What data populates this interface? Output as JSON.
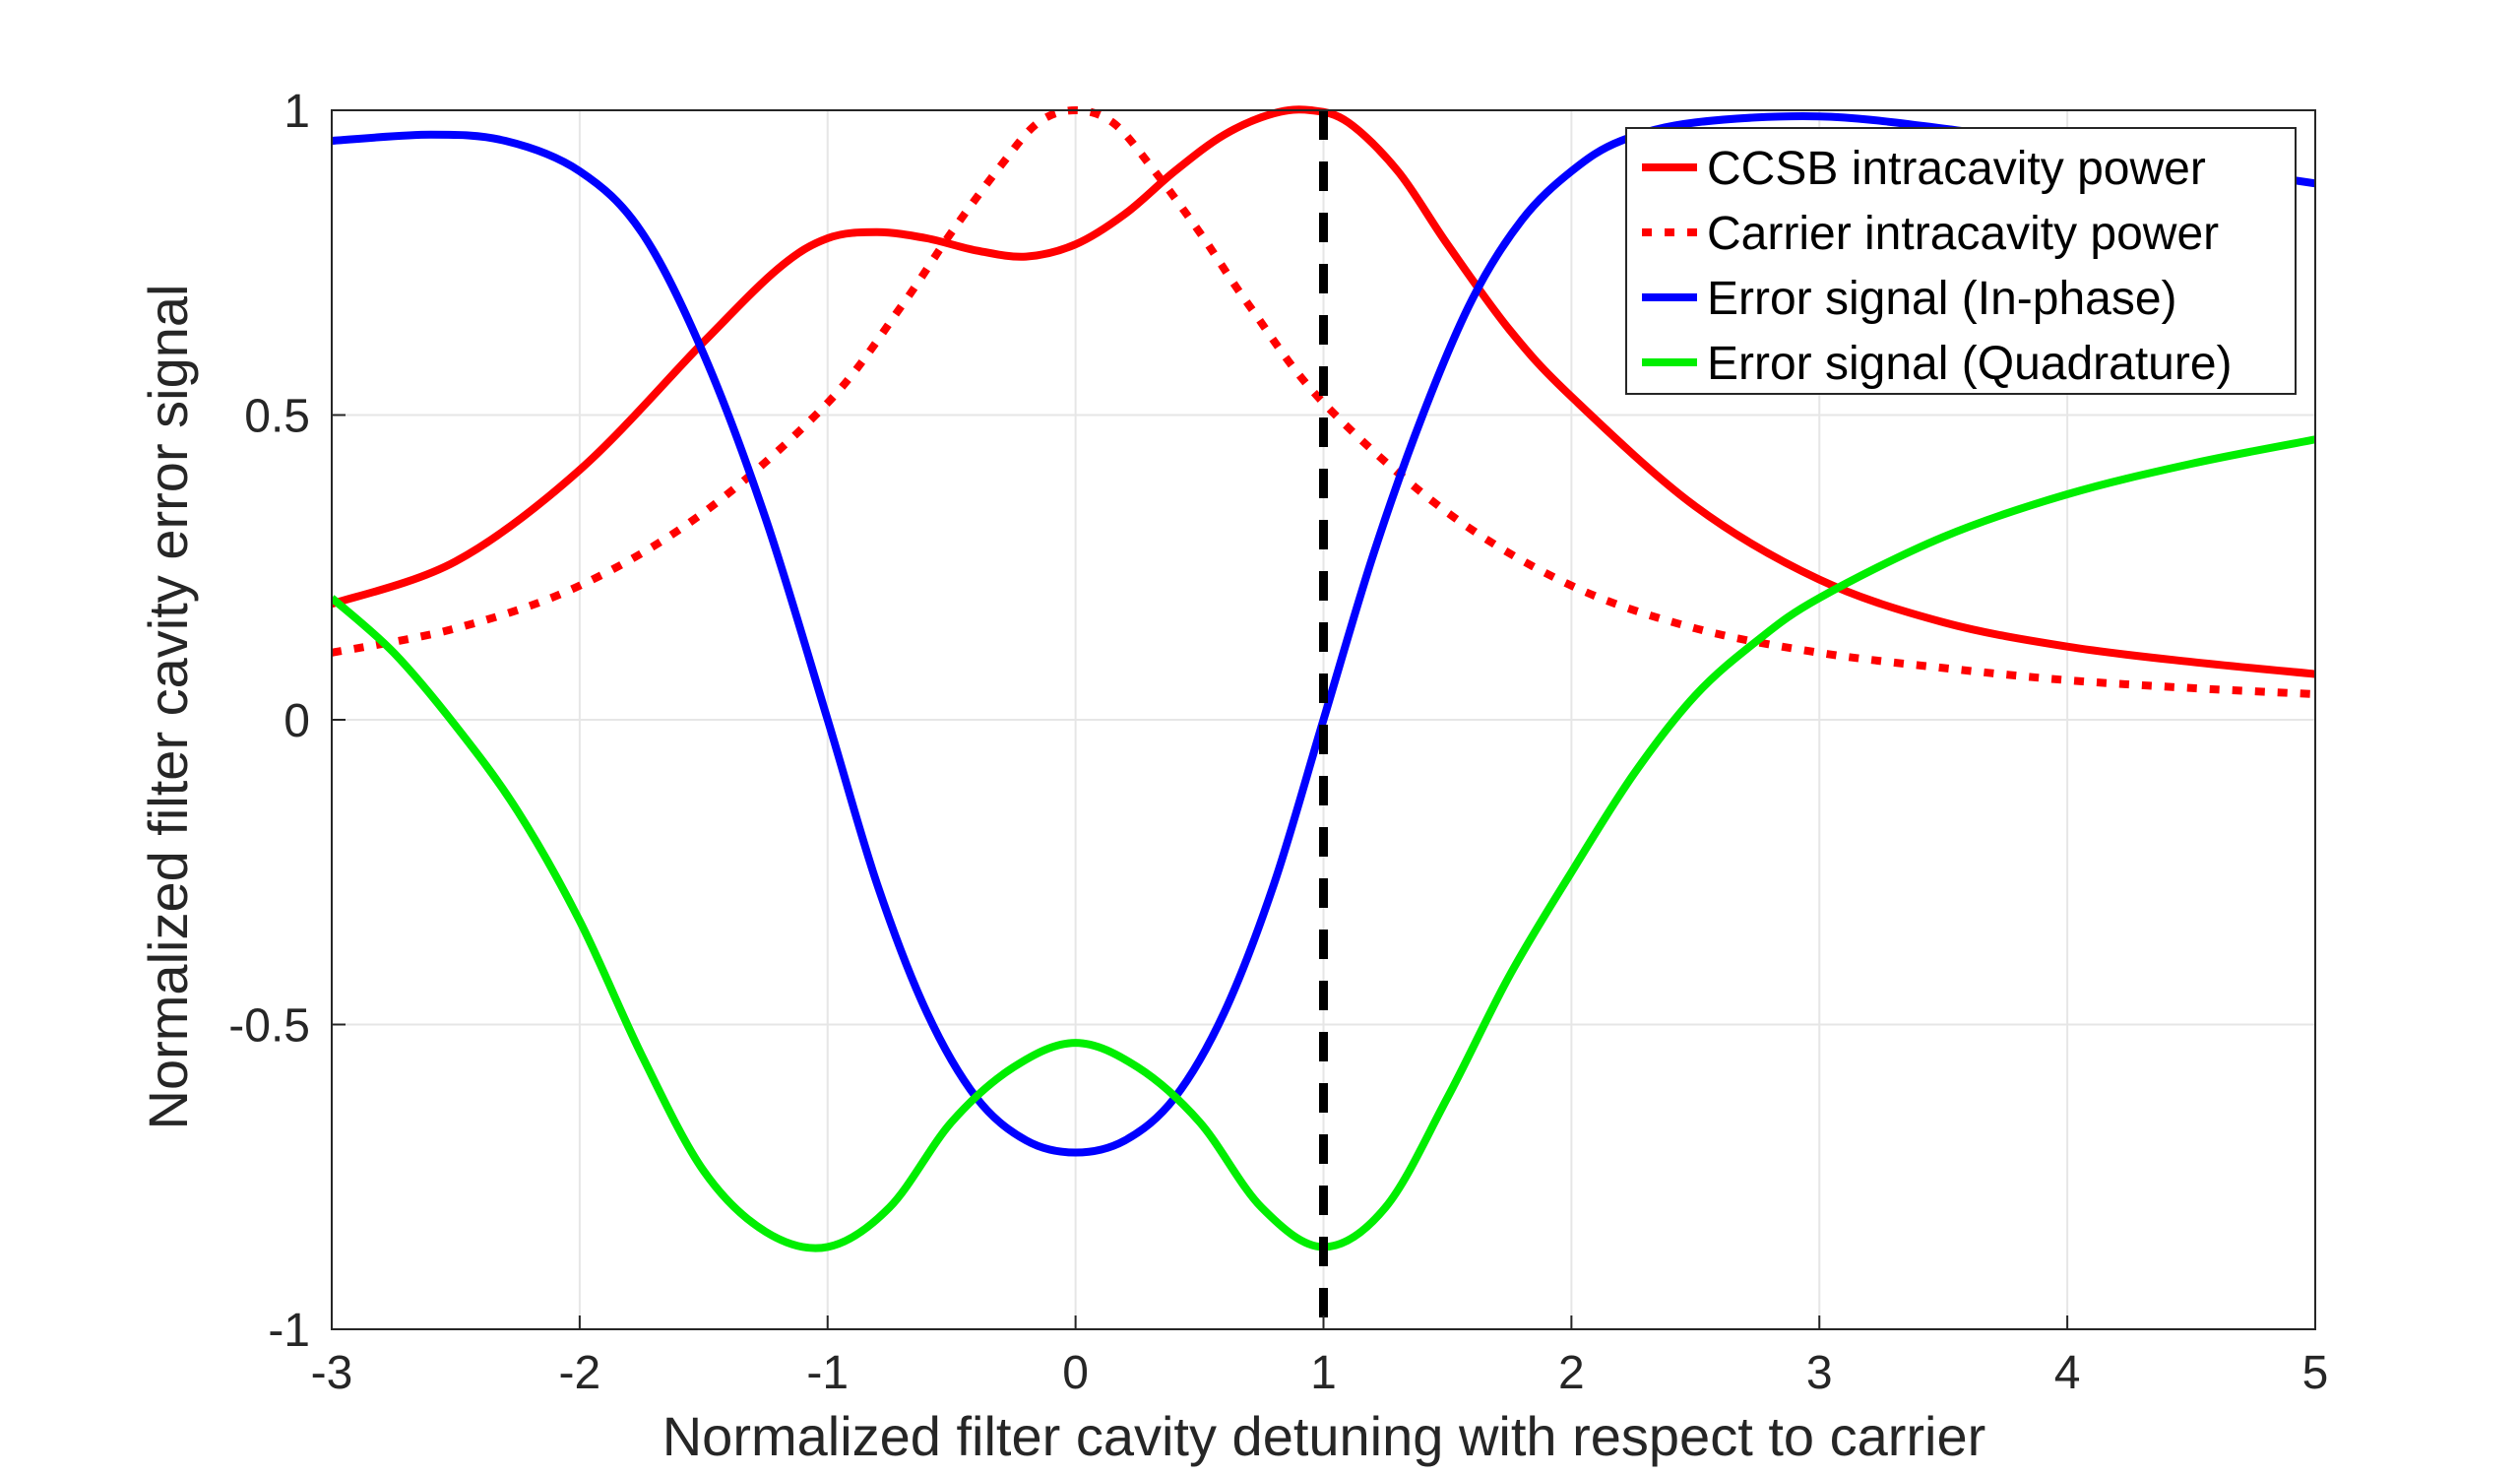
{
  "chart_data": {
    "type": "line",
    "title": "",
    "xlabel": "Normalized filter cavity detuning with respect to carrier",
    "ylabel": "Normalized filter cavity error signal",
    "xlim": [
      -3,
      5
    ],
    "ylim": [
      -1,
      1
    ],
    "grid": true,
    "legend_position": "top-right",
    "x_ticks": [
      "-3",
      "-2",
      "-1",
      "0",
      "1",
      "2",
      "3",
      "4",
      "5"
    ],
    "y_ticks": [
      "-1",
      "-0.5",
      "0",
      "0.5",
      "1"
    ],
    "series": [
      {
        "name": "CCSB intracavity power",
        "color": "#ff0000",
        "style": "solid",
        "x": [
          -3,
          -2.5,
          -2,
          -1.5,
          -1.2,
          -1,
          -0.8,
          -0.6,
          -0.4,
          -0.2,
          0,
          0.2,
          0.4,
          0.6,
          0.8,
          0.95,
          1.1,
          1.3,
          1.5,
          1.75,
          2,
          2.5,
          3,
          3.5,
          4,
          4.5,
          5
        ],
        "y": [
          0.19,
          0.26,
          0.41,
          0.62,
          0.74,
          0.79,
          0.8,
          0.79,
          0.77,
          0.76,
          0.78,
          0.83,
          0.9,
          0.96,
          0.995,
          1.0,
          0.98,
          0.9,
          0.78,
          0.64,
          0.53,
          0.35,
          0.23,
          0.16,
          0.12,
          0.095,
          0.075
        ]
      },
      {
        "name": "Carrier intracavity power",
        "color": "#ff0000",
        "style": "dotted",
        "x": [
          -3,
          -2.5,
          -2,
          -1.5,
          -1,
          -0.7,
          -0.5,
          -0.3,
          -0.15,
          0,
          0.15,
          0.3,
          0.5,
          0.7,
          1,
          1.5,
          2,
          2.5,
          3,
          3.5,
          4,
          4.5,
          5
        ],
        "y": [
          0.11,
          0.15,
          0.22,
          0.34,
          0.52,
          0.68,
          0.8,
          0.91,
          0.98,
          1.0,
          0.98,
          0.91,
          0.8,
          0.68,
          0.52,
          0.34,
          0.22,
          0.15,
          0.11,
          0.085,
          0.065,
          0.052,
          0.042
        ]
      },
      {
        "name": "Error signal (In-phase)",
        "color": "#0000ff",
        "style": "solid",
        "x": [
          -3,
          -2.6,
          -2.3,
          -2,
          -1.75,
          -1.5,
          -1.25,
          -1,
          -0.8,
          -0.6,
          -0.4,
          -0.2,
          0,
          0.2,
          0.4,
          0.6,
          0.8,
          1,
          1.2,
          1.4,
          1.6,
          1.8,
          2,
          2.2,
          2.5,
          3,
          3.5,
          4,
          4.5,
          5
        ],
        "y": [
          0.95,
          0.96,
          0.95,
          0.9,
          0.8,
          0.6,
          0.33,
          0.0,
          -0.27,
          -0.48,
          -0.62,
          -0.69,
          -0.71,
          -0.69,
          -0.62,
          -0.48,
          -0.27,
          0.0,
          0.27,
          0.5,
          0.69,
          0.82,
          0.9,
          0.95,
          0.98,
          0.99,
          0.97,
          0.94,
          0.91,
          0.88
        ]
      },
      {
        "name": "Error signal (Quadrature)",
        "color": "#00ee00",
        "style": "solid",
        "x": [
          -3,
          -2.75,
          -2.5,
          -2.25,
          -2,
          -1.75,
          -1.5,
          -1.25,
          -1,
          -0.75,
          -0.5,
          -0.25,
          0,
          0.25,
          0.5,
          0.75,
          1,
          1.25,
          1.5,
          1.75,
          2,
          2.25,
          2.5,
          2.75,
          3,
          3.5,
          4,
          4.5,
          5
        ],
        "y": [
          0.2,
          0.11,
          -0.01,
          -0.15,
          -0.33,
          -0.55,
          -0.74,
          -0.84,
          -0.865,
          -0.8,
          -0.66,
          -0.57,
          -0.53,
          -0.57,
          -0.66,
          -0.8,
          -0.865,
          -0.8,
          -0.62,
          -0.42,
          -0.25,
          -0.09,
          0.04,
          0.13,
          0.2,
          0.3,
          0.37,
          0.42,
          0.46
        ]
      }
    ],
    "reference_lines": [
      {
        "orientation": "vertical",
        "x": 1,
        "color": "#000000",
        "style": "dashed"
      }
    ]
  }
}
